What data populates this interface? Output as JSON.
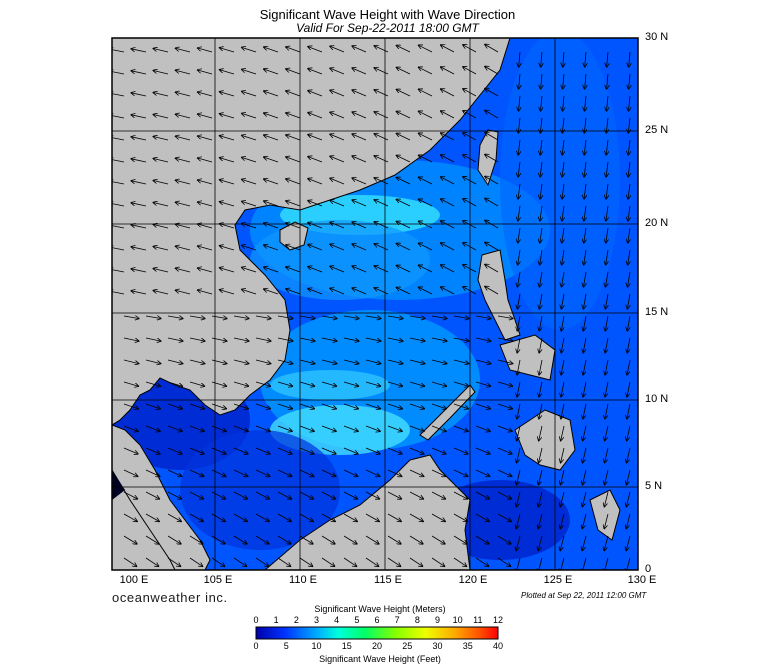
{
  "title": "Significant Wave Height with Wave Direction",
  "subtitle": "Valid For Sep-22-2011 18:00 GMT",
  "lat_labels": [
    "30 N",
    "25 N",
    "20 N",
    "15 N",
    "10 N",
    "5 N",
    "0"
  ],
  "lon_labels": [
    "100 E",
    "105 E",
    "110 E",
    "115 E",
    "120 E",
    "125 E",
    "130 E"
  ],
  "branding": "oceanweather inc.",
  "plotted_note": "Plotted at Sep 22, 2011 12:00 GMT",
  "legend": {
    "meters_title": "Significant Wave Height (Meters)",
    "feet_title": "Significant Wave Height (Feet)",
    "meters_ticks": [
      "0",
      "1",
      "2",
      "3",
      "4",
      "5",
      "6",
      "7",
      "8",
      "9",
      "10",
      "11",
      "12"
    ],
    "feet_ticks": [
      "0",
      "5",
      "10",
      "15",
      "20",
      "25",
      "30",
      "35",
      "40"
    ],
    "colors": [
      "#0000aa",
      "#0033ff",
      "#0088ff",
      "#00ccff",
      "#00ffcc",
      "#22ff55",
      "#66ff00",
      "#ccff00",
      "#ffdd00",
      "#ff8800",
      "#ff3300",
      "#dd0000"
    ]
  },
  "colors": {
    "land": "#c0c0c0",
    "coast": "#000000",
    "sea_deep": "#0033ff",
    "sea_mid": "#0077ff",
    "sea_high": "#33ddff"
  }
}
